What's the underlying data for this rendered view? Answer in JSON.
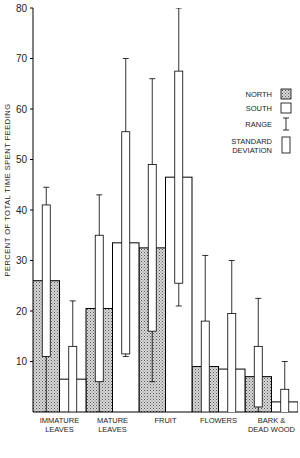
{
  "chart_data": {
    "type": "bar",
    "y_label": "PERCENT OF TOTAL TIME SPENT FEEDING",
    "categories": [
      "IMMATURE\nLEAVES",
      "MATURE\nLEAVES",
      "FRUIT",
      "FLOWERS",
      "BARK &\nDEAD WOOD"
    ],
    "series": [
      {
        "name": "NORTH",
        "color": "#b0b0b0",
        "values": [
          26,
          20.5,
          32.5,
          9,
          7
        ],
        "sd": [
          15,
          14.5,
          16.5,
          9,
          6
        ],
        "range_min": [
          0,
          0,
          6,
          0,
          0
        ],
        "range_max": [
          44.5,
          43,
          66,
          31,
          22.5
        ]
      },
      {
        "name": "SOUTH",
        "color": "#ffffff",
        "values": [
          6.5,
          33.5,
          46.5,
          8.5,
          2
        ],
        "sd": [
          6.5,
          22,
          21,
          11,
          2.5
        ],
        "range_min": [
          0,
          11,
          21,
          0,
          0
        ],
        "range_max": [
          22,
          70,
          80,
          30,
          10
        ]
      }
    ],
    "annotations": [
      "RANGE",
      "STANDARD DEVIATION"
    ],
    "ylim": [
      0,
      80
    ],
    "yticks": [
      10,
      20,
      30,
      40,
      50,
      60,
      70,
      80
    ],
    "legend": "top-right"
  }
}
